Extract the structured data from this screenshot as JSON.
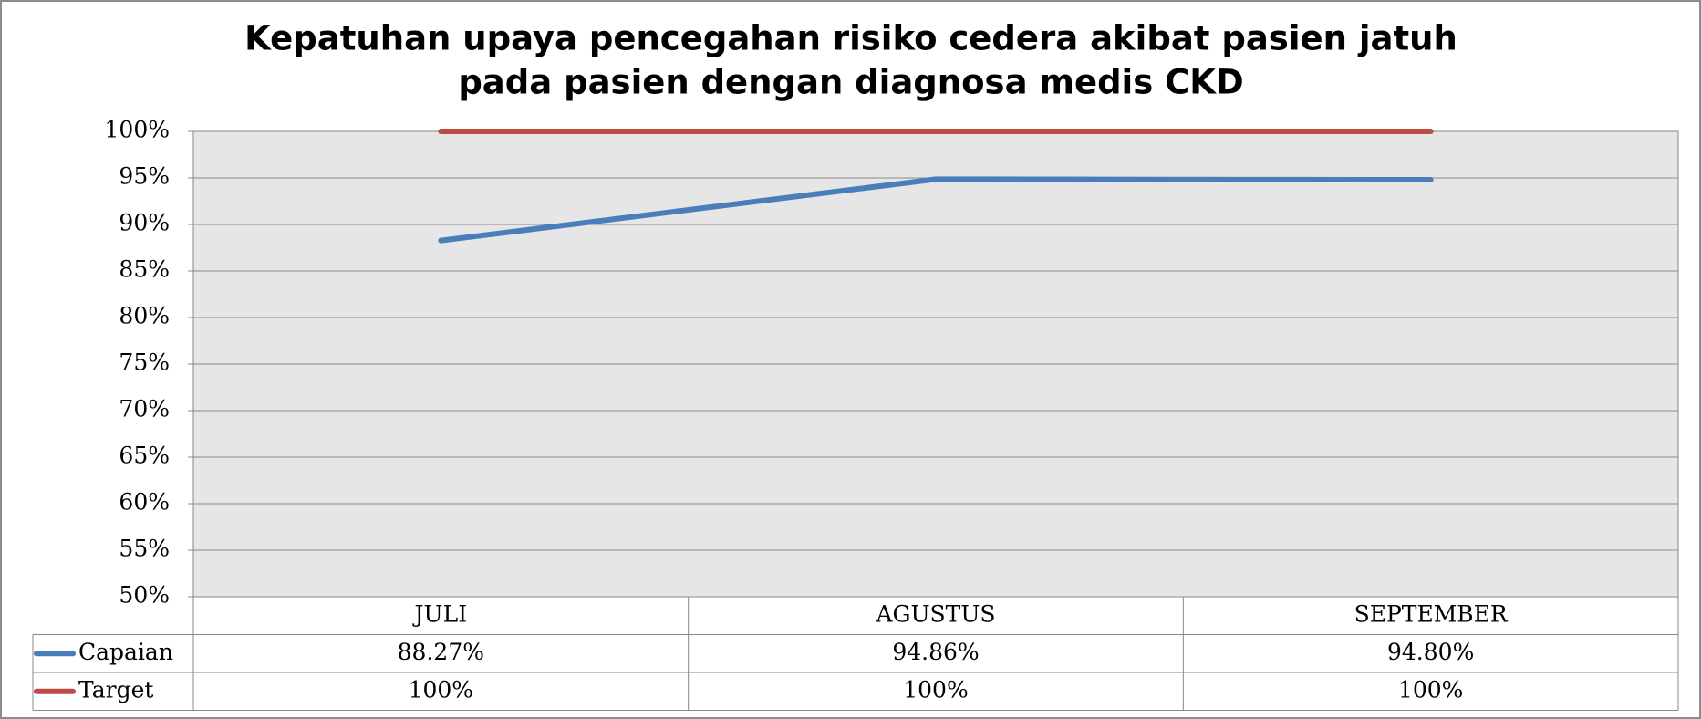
{
  "chart_data": {
    "type": "line",
    "title": [
      "Kepatuhan upaya pencegahan risiko cedera akibat pasien jatuh",
      "pada pasien dengan diagnosa medis CKD"
    ],
    "categories": [
      "JULI",
      "AGUSTUS",
      "SEPTEMBER"
    ],
    "series": [
      {
        "name": "Capaian",
        "color": "#4a7ebb",
        "values": [
          88.27,
          94.86,
          94.8
        ],
        "value_labels": [
          "88.27%",
          "94.86%",
          "94.80%"
        ]
      },
      {
        "name": "Target",
        "color": "#be4b48",
        "values": [
          100,
          100,
          100
        ],
        "value_labels": [
          "100%",
          "100%",
          "100%"
        ]
      }
    ],
    "ylim": [
      50,
      100
    ],
    "yticks": [
      {
        "value": 50,
        "label": "50%"
      },
      {
        "value": 55,
        "label": "55%"
      },
      {
        "value": 60,
        "label": "60%"
      },
      {
        "value": 65,
        "label": "65%"
      },
      {
        "value": 70,
        "label": "70%"
      },
      {
        "value": 75,
        "label": "75%"
      },
      {
        "value": 80,
        "label": "80%"
      },
      {
        "value": 85,
        "label": "85%"
      },
      {
        "value": 90,
        "label": "90%"
      },
      {
        "value": 95,
        "label": "95%"
      },
      {
        "value": 100,
        "label": "100%"
      }
    ],
    "grid": true,
    "data_table": true
  }
}
